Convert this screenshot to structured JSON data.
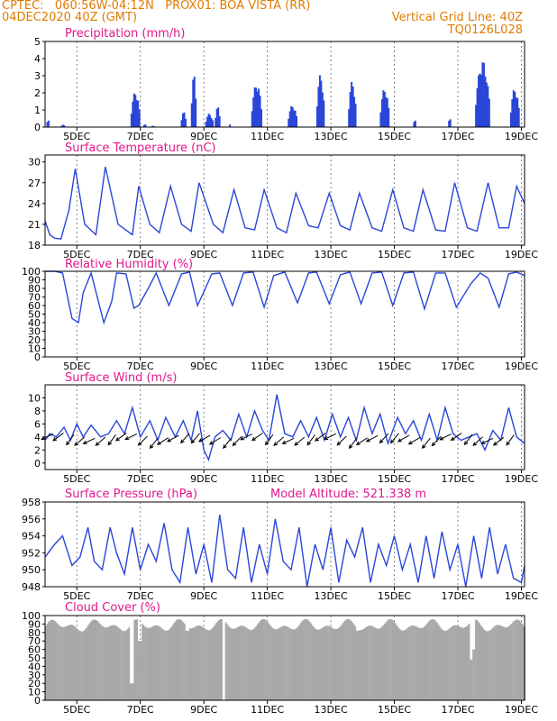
{
  "header": {
    "line1": "CPTEC:   060:56W-04:12N   PROX01: BOA VISTA (RR)",
    "line2_left": "04DEC2020 40Z (GMT)",
    "line2_right": "Vertical Grid Line: 40Z",
    "line3_right": "TQ0126L028"
  },
  "colors": {
    "header": "#e07b00",
    "title": "#e0188c",
    "series": "#2a46d8",
    "cloud": "#a8a8a8",
    "arrow": "#000000"
  },
  "x_axis": {
    "unit": "days since 04DEC 00Z",
    "range": [
      0,
      15.1
    ],
    "ticks": [
      {
        "t": 1,
        "label": "5DEC"
      },
      {
        "t": 3,
        "label": "7DEC"
      },
      {
        "t": 5,
        "label": "9DEC"
      },
      {
        "t": 7,
        "label": "11DEC"
      },
      {
        "t": 9,
        "label": "13DEC"
      },
      {
        "t": 11,
        "label": "15DEC"
      },
      {
        "t": 13,
        "label": "17DEC"
      },
      {
        "t": 15,
        "label": "19DEC"
      }
    ]
  },
  "chart_data": [
    {
      "type": "bar",
      "title": "Precipitation (mm/h)",
      "ylim": [
        0,
        5
      ],
      "yticks": [
        0,
        1,
        2,
        3,
        4,
        5
      ],
      "hour_step": 1,
      "events": [
        {
          "t0": 0.05,
          "t1": 0.15,
          "peak": 0.5
        },
        {
          "t0": 0.5,
          "t1": 0.62,
          "peak": 0.15
        },
        {
          "t0": 2.7,
          "t1": 3.0,
          "peak": 2.1
        },
        {
          "t0": 3.1,
          "t1": 3.2,
          "peak": 0.2
        },
        {
          "t0": 3.35,
          "t1": 3.45,
          "peak": 0.1
        },
        {
          "t0": 4.28,
          "t1": 4.45,
          "peak": 0.9
        },
        {
          "t0": 4.6,
          "t1": 4.78,
          "peak": 3.1
        },
        {
          "t0": 5.05,
          "t1": 5.3,
          "peak": 0.8
        },
        {
          "t0": 5.35,
          "t1": 5.5,
          "peak": 1.2
        },
        {
          "t0": 5.8,
          "t1": 5.85,
          "peak": 0.2
        },
        {
          "t0": 6.5,
          "t1": 6.85,
          "peak": 2.6
        },
        {
          "t0": 7.65,
          "t1": 7.95,
          "peak": 1.3
        },
        {
          "t0": 8.55,
          "t1": 8.8,
          "peak": 3.1
        },
        {
          "t0": 9.55,
          "t1": 9.8,
          "peak": 2.7
        },
        {
          "t0": 10.55,
          "t1": 10.85,
          "peak": 2.3
        },
        {
          "t0": 11.6,
          "t1": 11.7,
          "peak": 0.5
        },
        {
          "t0": 12.7,
          "t1": 12.78,
          "peak": 0.6
        },
        {
          "t0": 13.55,
          "t1": 14.0,
          "peak": 3.9
        },
        {
          "t0": 14.65,
          "t1": 14.95,
          "peak": 2.3
        }
      ]
    },
    {
      "type": "line",
      "title": "Surface Temperature (nC)",
      "ylim": [
        18,
        31
      ],
      "yticks": [
        18,
        21,
        24,
        27,
        30
      ],
      "x": [
        0.0,
        0.15,
        0.3,
        0.5,
        0.75,
        0.95,
        1.25,
        1.6,
        1.9,
        2.3,
        2.75,
        2.95,
        3.3,
        3.6,
        3.95,
        4.3,
        4.6,
        4.85,
        5.3,
        5.6,
        5.95,
        6.3,
        6.6,
        6.9,
        7.3,
        7.6,
        7.9,
        8.3,
        8.6,
        8.95,
        9.3,
        9.6,
        9.9,
        10.3,
        10.6,
        10.95,
        11.3,
        11.6,
        11.9,
        12.3,
        12.6,
        12.9,
        13.3,
        13.6,
        13.95,
        14.3,
        14.6,
        14.85,
        15.1
      ],
      "values": [
        21.5,
        19.5,
        19.0,
        18.9,
        23.0,
        29.0,
        21.0,
        19.5,
        29.3,
        21.0,
        19.5,
        26.5,
        21.0,
        19.8,
        26.5,
        21.0,
        20.0,
        27.0,
        21.0,
        19.8,
        26.0,
        20.5,
        20.2,
        26.0,
        20.5,
        19.8,
        25.5,
        20.8,
        20.5,
        25.5,
        20.8,
        20.2,
        25.5,
        20.5,
        20.0,
        26.0,
        20.5,
        20.0,
        26.0,
        20.2,
        20.0,
        27.0,
        20.5,
        20.0,
        27.0,
        20.5,
        20.5,
        26.5,
        24.0
      ]
    },
    {
      "type": "line",
      "title": "Relative Humidity (%)",
      "ylim": [
        0,
        100
      ],
      "yticks": [
        0,
        10,
        20,
        30,
        40,
        50,
        60,
        70,
        80,
        90,
        100
      ],
      "x": [
        0.0,
        0.3,
        0.55,
        0.85,
        1.05,
        1.2,
        1.45,
        1.85,
        2.1,
        2.25,
        2.55,
        2.8,
        2.95,
        3.25,
        3.5,
        3.9,
        4.3,
        4.55,
        4.8,
        5.05,
        5.25,
        5.5,
        5.9,
        6.25,
        6.55,
        6.9,
        7.2,
        7.55,
        7.95,
        8.3,
        8.55,
        8.95,
        9.3,
        9.6,
        9.95,
        10.3,
        10.6,
        10.95,
        11.3,
        11.6,
        11.95,
        12.3,
        12.6,
        12.95,
        13.4,
        13.7,
        13.95,
        14.3,
        14.6,
        14.85,
        15.1
      ],
      "values": [
        100,
        100,
        98,
        45,
        40,
        75,
        98,
        40,
        65,
        98,
        97,
        57,
        60,
        80,
        98,
        60,
        97,
        99,
        60,
        80,
        97,
        98,
        60,
        98,
        99,
        58,
        95,
        99,
        63,
        98,
        99,
        62,
        96,
        99,
        62,
        98,
        99,
        60,
        98,
        99,
        56,
        98,
        98,
        58,
        85,
        98,
        92,
        58,
        97,
        99,
        95
      ]
    },
    {
      "type": "line",
      "title": "Surface Wind (m/s)",
      "ylim": [
        -1,
        12
      ],
      "yticks": [
        0,
        2,
        4,
        6,
        8,
        10
      ],
      "x": [
        0.0,
        0.15,
        0.35,
        0.6,
        0.8,
        1.0,
        1.2,
        1.45,
        1.75,
        2.0,
        2.25,
        2.5,
        2.75,
        3.0,
        3.3,
        3.55,
        3.8,
        4.1,
        4.35,
        4.6,
        4.8,
        5.0,
        5.15,
        5.35,
        5.6,
        5.85,
        6.1,
        6.35,
        6.6,
        6.85,
        7.05,
        7.3,
        7.55,
        7.8,
        8.05,
        8.3,
        8.55,
        8.8,
        9.05,
        9.3,
        9.55,
        9.8,
        10.05,
        10.3,
        10.55,
        10.8,
        11.1,
        11.35,
        11.6,
        11.85,
        12.1,
        12.35,
        12.6,
        12.85,
        13.1,
        13.35,
        13.6,
        13.85,
        14.1,
        14.35,
        14.6,
        14.85,
        15.1
      ],
      "values": [
        3.5,
        4.5,
        4.0,
        5.5,
        3.5,
        6.0,
        4.0,
        5.8,
        4.0,
        4.5,
        6.5,
        4.5,
        8.5,
        4.0,
        6.5,
        3.5,
        7.0,
        4.0,
        6.5,
        3.5,
        8.0,
        2.0,
        0.5,
        4.0,
        5.0,
        3.5,
        7.5,
        4.0,
        8.0,
        5.0,
        3.5,
        10.5,
        4.5,
        4.0,
        6.5,
        4.0,
        7.0,
        3.5,
        7.5,
        4.0,
        7.0,
        3.5,
        8.5,
        4.5,
        7.5,
        3.0,
        7.0,
        4.5,
        6.5,
        3.5,
        7.5,
        3.5,
        8.5,
        4.5,
        3.5,
        4.0,
        4.5,
        2.0,
        5.0,
        3.5,
        8.5,
        4.0,
        3.0
      ]
    },
    {
      "type": "line",
      "title": "Surface Pressure (hPa)",
      "subtitle": "Model Altitude: 521.338 m",
      "ylim": [
        948,
        958
      ],
      "yticks": [
        948,
        950,
        952,
        954,
        956,
        958
      ],
      "x": [
        0.0,
        0.3,
        0.55,
        0.85,
        1.1,
        1.35,
        1.55,
        1.8,
        2.05,
        2.25,
        2.5,
        2.75,
        3.0,
        3.25,
        3.5,
        3.75,
        4.0,
        4.25,
        4.5,
        4.75,
        5.0,
        5.25,
        5.5,
        5.75,
        6.0,
        6.25,
        6.5,
        6.75,
        7.0,
        7.25,
        7.5,
        7.75,
        8.0,
        8.25,
        8.5,
        8.75,
        9.0,
        9.25,
        9.5,
        9.75,
        10.0,
        10.25,
        10.5,
        10.75,
        11.0,
        11.25,
        11.5,
        11.75,
        12.0,
        12.25,
        12.5,
        12.75,
        13.0,
        13.25,
        13.5,
        13.75,
        14.0,
        14.25,
        14.5,
        14.75,
        15.0,
        15.1
      ],
      "values": [
        951.5,
        953.0,
        954.0,
        950.5,
        951.5,
        955.0,
        951.0,
        950.0,
        955.0,
        952.0,
        949.5,
        955.0,
        950.0,
        953.0,
        951.0,
        955.5,
        950.0,
        948.5,
        955.0,
        949.5,
        953.0,
        948.5,
        956.5,
        950.0,
        949.0,
        955.0,
        948.5,
        953.0,
        949.5,
        956.0,
        951.0,
        950.0,
        955.0,
        948.0,
        953.0,
        950.0,
        955.0,
        948.5,
        953.5,
        951.5,
        955.0,
        948.5,
        953.0,
        950.5,
        954.0,
        950.0,
        953.0,
        948.5,
        954.0,
        949.0,
        954.5,
        950.0,
        953.0,
        948.0,
        954.0,
        949.0,
        955.0,
        949.5,
        953.0,
        949.0,
        948.5,
        950.5
      ]
    },
    {
      "type": "bar",
      "title": "Cloud Cover (%)",
      "ylim": [
        0,
        100
      ],
      "yticks": [
        0,
        10,
        20,
        30,
        40,
        50,
        60,
        70,
        80,
        90,
        100
      ],
      "base": 88,
      "dips": [
        {
          "t": 2.7,
          "w": 0.06,
          "v": 20
        },
        {
          "t": 2.95,
          "w": 0.06,
          "v": 70
        },
        {
          "t": 4.45,
          "w": 0.05,
          "v": 82
        },
        {
          "t": 5.6,
          "w": 0.05,
          "v": 0
        },
        {
          "t": 9.8,
          "w": 0.05,
          "v": 82
        },
        {
          "t": 13.4,
          "w": 0.05,
          "v": 48
        },
        {
          "t": 13.45,
          "w": 0.05,
          "v": 60
        }
      ]
    }
  ]
}
